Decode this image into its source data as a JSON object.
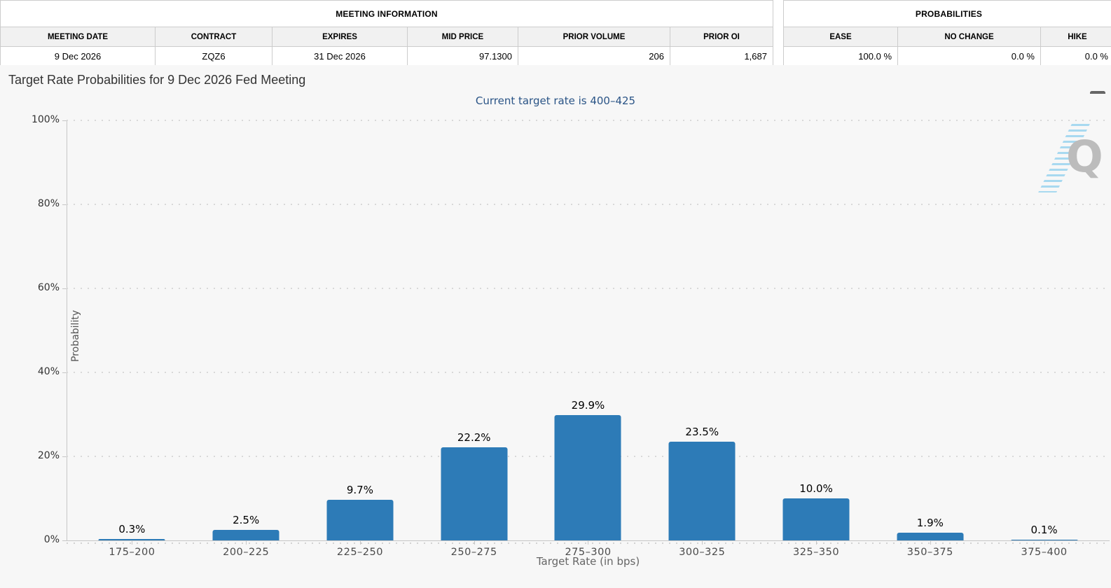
{
  "meeting_information": {
    "title": "MEETING INFORMATION",
    "columns": [
      "MEETING DATE",
      "CONTRACT",
      "EXPIRES",
      "MID PRICE",
      "PRIOR VOLUME",
      "PRIOR OI"
    ],
    "row": [
      "9 Dec 2026",
      "ZQZ6",
      "31 Dec 2026",
      "97.1300",
      "206",
      "1,687"
    ]
  },
  "probabilities_summary": {
    "title": "PROBABILITIES",
    "columns": [
      "EASE",
      "NO CHANGE",
      "HIKE"
    ],
    "row": [
      "100.0 %",
      "0.0 %",
      "0.0 %"
    ]
  },
  "chart": {
    "title": "Target Rate Probabilities for 9 Dec 2026 Fed Meeting",
    "subtitle": "Current target rate is 400–425",
    "menu_icon": "hamburger-menu-icon",
    "watermark_letter": "Q"
  },
  "chart_data": {
    "type": "bar",
    "title": "Target Rate Probabilities for 9 Dec 2026 Fed Meeting",
    "subtitle": "Current target rate is 400–425",
    "categories": [
      "175–200",
      "200–225",
      "225–250",
      "250–275",
      "275–300",
      "300–325",
      "325–350",
      "350–375",
      "375–400"
    ],
    "values": [
      0.3,
      2.5,
      9.7,
      22.2,
      29.9,
      23.5,
      10.0,
      1.9,
      0.1
    ],
    "data_labels": [
      "0.3%",
      "2.5%",
      "9.7%",
      "22.2%",
      "29.9%",
      "23.5%",
      "10.0%",
      "1.9%",
      "0.1%"
    ],
    "xlabel": "Target Rate (in bps)",
    "ylabel": "Probability",
    "ylim": [
      0,
      100
    ],
    "yticks": [
      "0%",
      "20%",
      "40%",
      "60%",
      "80%",
      "100%"
    ],
    "grid": "dotted horizontal",
    "legend": "none",
    "bar_color": "#2d7bb7"
  },
  "colors": {
    "bar": "#2d7bb7",
    "subtitle": "#2a5486",
    "chart_background": "#f7f7f7",
    "table_border": "#cccccc",
    "table_header_bg": "#f1f1f1",
    "axis_line": "#c6c6c6",
    "watermark_blue": "#8ecfee",
    "watermark_gray": "#bcbcbc"
  }
}
